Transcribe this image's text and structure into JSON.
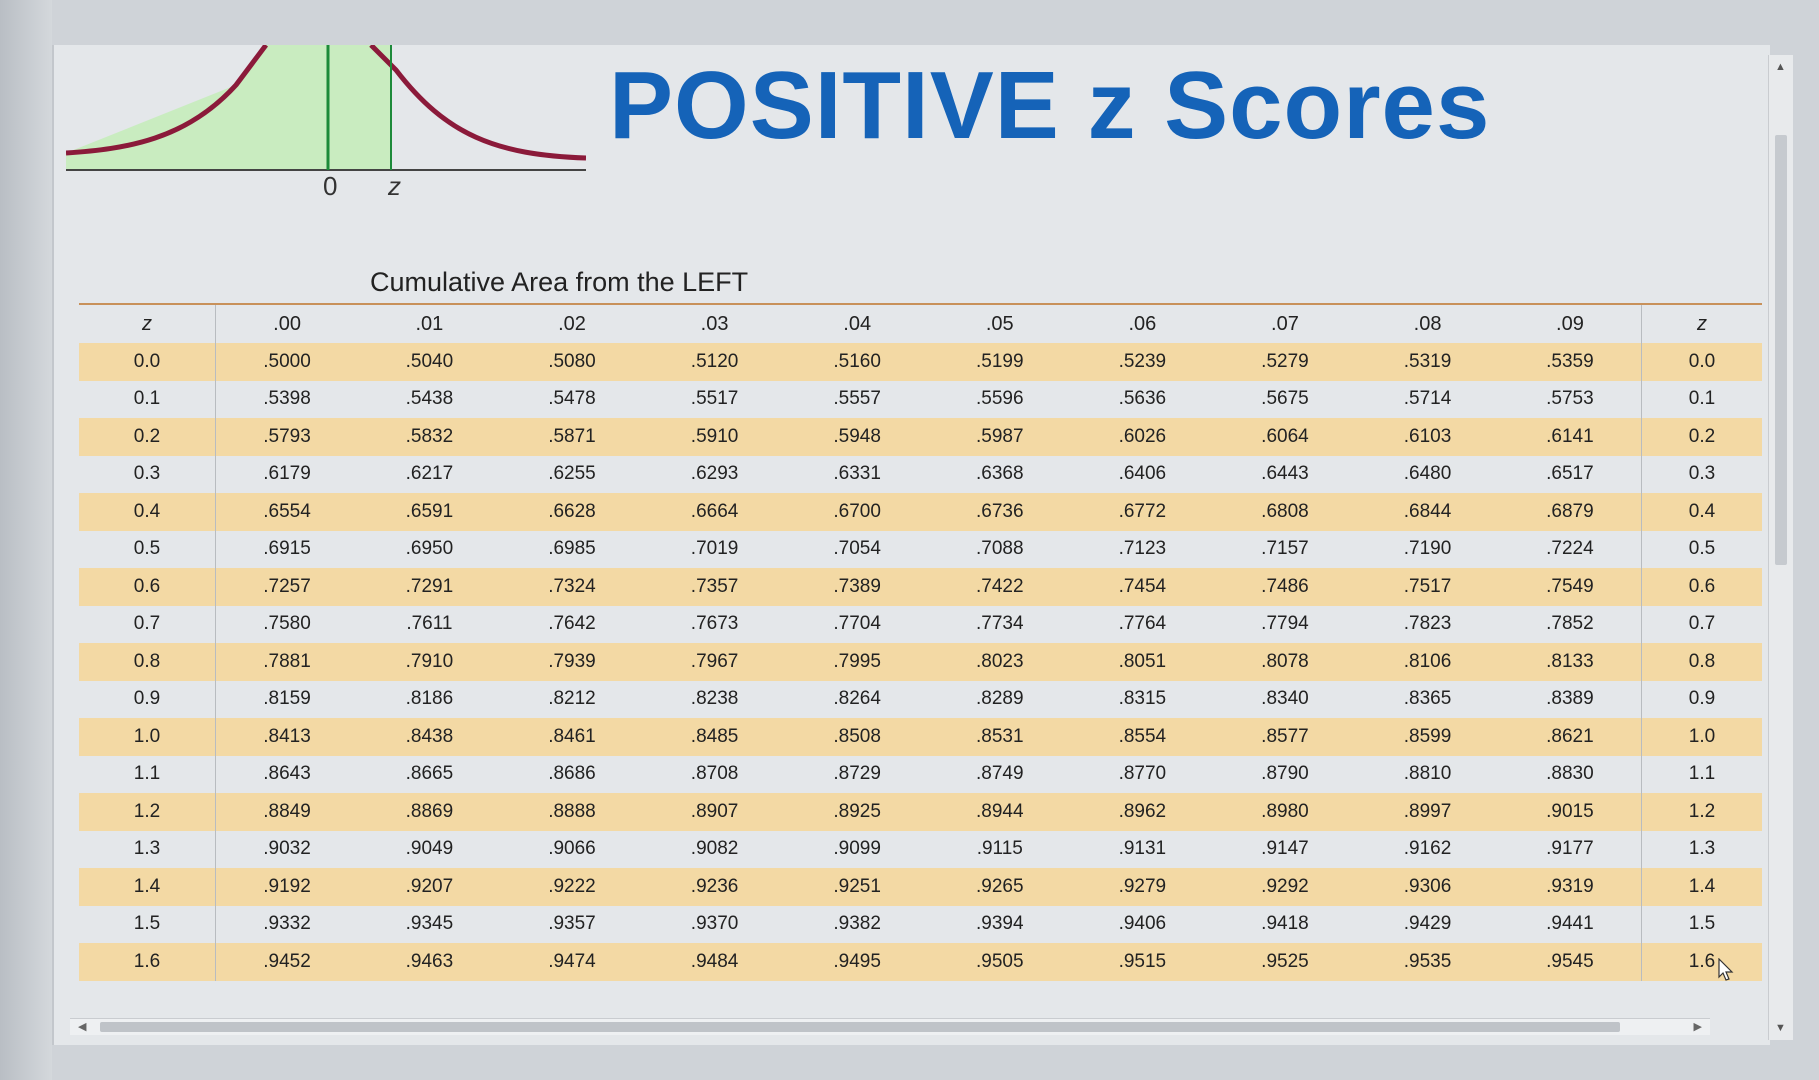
{
  "title": "POSITIVE z Scores",
  "subtitle": "Cumulative Area from the LEFT",
  "curve": {
    "zero_label": "0",
    "z_label": "z",
    "fill_color": "#c9ecc0",
    "curve_color": "#8b1a3a",
    "line_color": "#1d8a3a"
  },
  "colors": {
    "title": "#1563b8",
    "row_highlight": "#f3d9a4"
  },
  "table": {
    "left_header": "z",
    "right_header": "z",
    "columns": [
      ".00",
      ".01",
      ".02",
      ".03",
      ".04",
      ".05",
      ".06",
      ".07",
      ".08",
      ".09"
    ],
    "rows": [
      {
        "z": "0.0",
        "values": [
          ".5000",
          ".5040",
          ".5080",
          ".5120",
          ".5160",
          ".5199",
          ".5239",
          ".5279",
          ".5319",
          ".5359"
        ]
      },
      {
        "z": "0.1",
        "values": [
          ".5398",
          ".5438",
          ".5478",
          ".5517",
          ".5557",
          ".5596",
          ".5636",
          ".5675",
          ".5714",
          ".5753"
        ]
      },
      {
        "z": "0.2",
        "values": [
          ".5793",
          ".5832",
          ".5871",
          ".5910",
          ".5948",
          ".5987",
          ".6026",
          ".6064",
          ".6103",
          ".6141"
        ]
      },
      {
        "z": "0.3",
        "values": [
          ".6179",
          ".6217",
          ".6255",
          ".6293",
          ".6331",
          ".6368",
          ".6406",
          ".6443",
          ".6480",
          ".6517"
        ]
      },
      {
        "z": "0.4",
        "values": [
          ".6554",
          ".6591",
          ".6628",
          ".6664",
          ".6700",
          ".6736",
          ".6772",
          ".6808",
          ".6844",
          ".6879"
        ]
      },
      {
        "z": "0.5",
        "values": [
          ".6915",
          ".6950",
          ".6985",
          ".7019",
          ".7054",
          ".7088",
          ".7123",
          ".7157",
          ".7190",
          ".7224"
        ]
      },
      {
        "z": "0.6",
        "values": [
          ".7257",
          ".7291",
          ".7324",
          ".7357",
          ".7389",
          ".7422",
          ".7454",
          ".7486",
          ".7517",
          ".7549"
        ]
      },
      {
        "z": "0.7",
        "values": [
          ".7580",
          ".7611",
          ".7642",
          ".7673",
          ".7704",
          ".7734",
          ".7764",
          ".7794",
          ".7823",
          ".7852"
        ]
      },
      {
        "z": "0.8",
        "values": [
          ".7881",
          ".7910",
          ".7939",
          ".7967",
          ".7995",
          ".8023",
          ".8051",
          ".8078",
          ".8106",
          ".8133"
        ]
      },
      {
        "z": "0.9",
        "values": [
          ".8159",
          ".8186",
          ".8212",
          ".8238",
          ".8264",
          ".8289",
          ".8315",
          ".8340",
          ".8365",
          ".8389"
        ]
      },
      {
        "z": "1.0",
        "values": [
          ".8413",
          ".8438",
          ".8461",
          ".8485",
          ".8508",
          ".8531",
          ".8554",
          ".8577",
          ".8599",
          ".8621"
        ]
      },
      {
        "z": "1.1",
        "values": [
          ".8643",
          ".8665",
          ".8686",
          ".8708",
          ".8729",
          ".8749",
          ".8770",
          ".8790",
          ".8810",
          ".8830"
        ]
      },
      {
        "z": "1.2",
        "values": [
          ".8849",
          ".8869",
          ".8888",
          ".8907",
          ".8925",
          ".8944",
          ".8962",
          ".8980",
          ".8997",
          ".9015"
        ]
      },
      {
        "z": "1.3",
        "values": [
          ".9032",
          ".9049",
          ".9066",
          ".9082",
          ".9099",
          ".9115",
          ".9131",
          ".9147",
          ".9162",
          ".9177"
        ]
      },
      {
        "z": "1.4",
        "values": [
          ".9192",
          ".9207",
          ".9222",
          ".9236",
          ".9251",
          ".9265",
          ".9279",
          ".9292",
          ".9306",
          ".9319"
        ]
      },
      {
        "z": "1.5",
        "values": [
          ".9332",
          ".9345",
          ".9357",
          ".9370",
          ".9382",
          ".9394",
          ".9406",
          ".9418",
          ".9429",
          ".9441"
        ]
      },
      {
        "z": "1.6",
        "values": [
          ".9452",
          ".9463",
          ".9474",
          ".9484",
          ".9495",
          ".9505",
          ".9515",
          ".9525",
          ".9535",
          ".9545"
        ]
      }
    ]
  }
}
